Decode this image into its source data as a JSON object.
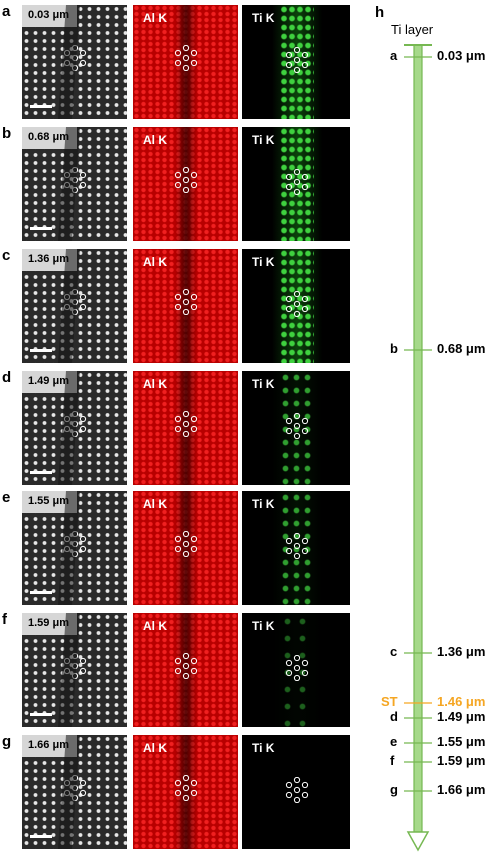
{
  "rows": [
    {
      "letter": "a",
      "thickness": "0.03 μm",
      "al_label": "Al K",
      "ti_label": "Ti K",
      "ti_level": "full"
    },
    {
      "letter": "b",
      "thickness": "0.68 μm",
      "al_label": "Al K",
      "ti_label": "Ti K",
      "ti_level": "full"
    },
    {
      "letter": "c",
      "thickness": "1.36 μm",
      "al_label": "Al K",
      "ti_label": "Ti K",
      "ti_level": "full"
    },
    {
      "letter": "d",
      "thickness": "1.49 μm",
      "al_label": "Al K",
      "ti_label": "Ti K",
      "ti_level": "sparse"
    },
    {
      "letter": "e",
      "thickness": "1.55 μm",
      "al_label": "Al K",
      "ti_label": "Ti K",
      "ti_level": "sparse"
    },
    {
      "letter": "f",
      "thickness": "1.59 μm",
      "al_label": "Al K",
      "ti_label": "Ti K",
      "ti_level": "very-sparse"
    },
    {
      "letter": "g",
      "thickness": "1.66 μm",
      "al_label": "Al K",
      "ti_label": "Ti K",
      "ti_level": "empty"
    }
  ],
  "panel_h": {
    "letter": "h",
    "title": "Ti layer",
    "ticks": [
      {
        "letter": "a",
        "value_um": 0.03,
        "label": "0.03 μm"
      },
      {
        "letter": "b",
        "value_um": 0.68,
        "label": "0.68 μm"
      },
      {
        "letter": "c",
        "value_um": 1.36,
        "label": "1.36 μm"
      },
      {
        "letter": "ST",
        "value_um": 1.46,
        "label": "1.46 μm",
        "highlight": true
      },
      {
        "letter": "d",
        "value_um": 1.49,
        "label": "1.49 μm"
      },
      {
        "letter": "e",
        "value_um": 1.55,
        "label": "1.55 μm"
      },
      {
        "letter": "f",
        "value_um": 1.59,
        "label": "1.59 μm"
      },
      {
        "letter": "g",
        "value_um": 1.66,
        "label": "1.66 μm"
      }
    ]
  },
  "colors": {
    "arrow_green": "#76b852",
    "arrow_fill": "#a6d98a",
    "st_orange": "#f5a623",
    "al_red": "#e01010",
    "ti_green": "#3fd13f"
  }
}
